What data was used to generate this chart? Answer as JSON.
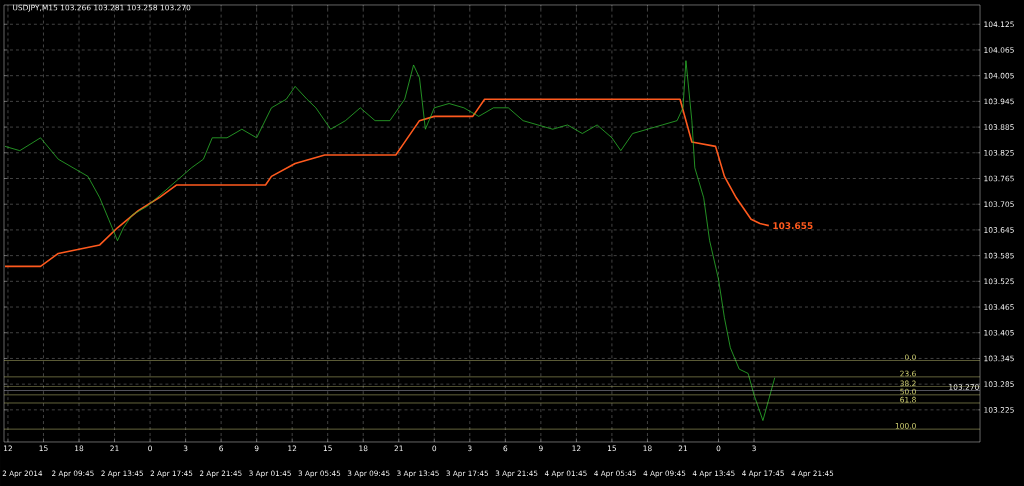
{
  "chart_data": {
    "type": "line",
    "title": "USDJPY,M15  103.266 103.281 103.258 103.270",
    "xlim": [
      "2014-04-02T11:40",
      "2014-04-05T22:05"
    ],
    "ylim": [
      103.15,
      104.17
    ],
    "xticks": [
      {
        "value": "2014-04-02T12:00",
        "label": "12"
      },
      {
        "value": "2014-04-02T15:00",
        "label": "15"
      },
      {
        "value": "2014-04-02T18:00",
        "label": "18"
      },
      {
        "value": "2014-04-02T21:00",
        "label": "21"
      },
      {
        "value": "2014-04-03T00:00",
        "label": "0"
      },
      {
        "value": "2014-04-03T03:00",
        "label": "3"
      },
      {
        "value": "2014-04-03T06:00",
        "label": "6"
      },
      {
        "value": "2014-04-03T09:00",
        "label": "9"
      },
      {
        "value": "2014-04-03T12:00",
        "label": "12"
      },
      {
        "value": "2014-04-03T15:00",
        "label": "15"
      },
      {
        "value": "2014-04-03T18:00",
        "label": "18"
      },
      {
        "value": "2014-04-03T21:00",
        "label": "21"
      },
      {
        "value": "2014-04-04T00:00",
        "label": "0"
      },
      {
        "value": "2014-04-04T03:00",
        "label": "3"
      },
      {
        "value": "2014-04-04T06:00",
        "label": "6"
      },
      {
        "value": "2014-04-04T09:00",
        "label": "9"
      },
      {
        "value": "2014-04-04T12:00",
        "label": "12"
      },
      {
        "value": "2014-04-04T15:00",
        "label": "15"
      },
      {
        "value": "2014-04-04T18:00",
        "label": "18"
      },
      {
        "value": "2014-04-04T21:00",
        "label": "21"
      },
      {
        "value": "2014-04-05T00:00",
        "label": "0"
      },
      {
        "value": "2014-04-05T03:00",
        "label": "3"
      }
    ],
    "yticks": [
      104.125,
      104.065,
      104.005,
      103.945,
      103.885,
      103.825,
      103.765,
      103.705,
      103.645,
      103.585,
      103.525,
      103.465,
      103.405,
      103.345,
      103.285,
      103.225
    ],
    "grid": true,
    "marker": "none",
    "series": [
      {
        "color": "#32cd32",
        "x": [
          "2014-04-02T11:45",
          "2014-04-02T13:00",
          "2014-04-02T14:45",
          "2014-04-02T16:15",
          "2014-04-02T17:30",
          "2014-04-02T18:45",
          "2014-04-02T19:45",
          "2014-04-02T20:30",
          "2014-04-02T21:15",
          "2014-04-02T21:45",
          "2014-04-02T22:30",
          "2014-04-02T23:45",
          "2014-04-03T01:00",
          "2014-04-03T02:15",
          "2014-04-03T03:30",
          "2014-04-03T04:30",
          "2014-04-03T05:15",
          "2014-04-03T06:30",
          "2014-04-03T07:45",
          "2014-04-03T09:00",
          "2014-04-03T10:15",
          "2014-04-03T11:30",
          "2014-04-03T12:15",
          "2014-04-03T13:15",
          "2014-04-03T14:00",
          "2014-04-03T15:15",
          "2014-04-03T16:30",
          "2014-04-03T17:45",
          "2014-04-03T19:00",
          "2014-04-03T20:15",
          "2014-04-03T21:30",
          "2014-04-03T22:15",
          "2014-04-03T22:45",
          "2014-04-03T23:15",
          "2014-04-04T00:00",
          "2014-04-04T01:15",
          "2014-04-04T02:30",
          "2014-04-04T03:45",
          "2014-04-04T05:00",
          "2014-04-04T06:15",
          "2014-04-04T07:30",
          "2014-04-04T08:45",
          "2014-04-04T10:00",
          "2014-04-04T11:15",
          "2014-04-04T12:30",
          "2014-04-04T13:45",
          "2014-04-04T15:00",
          "2014-04-04T15:45",
          "2014-04-04T16:45",
          "2014-04-04T18:00",
          "2014-04-04T19:15",
          "2014-04-04T20:30",
          "2014-04-04T21:00",
          "2014-04-04T21:15",
          "2014-04-04T21:45",
          "2014-04-04T22:00",
          "2014-04-04T22:45",
          "2014-04-04T23:15",
          "2014-04-05T00:00",
          "2014-04-05T00:30",
          "2014-04-05T01:00",
          "2014-04-05T01:45",
          "2014-04-05T02:30",
          "2014-04-05T03:00",
          "2014-04-05T03:45",
          "2014-04-05T04:15",
          "2014-04-05T04:45"
        ],
        "values": [
          103.84,
          103.83,
          103.86,
          103.81,
          103.79,
          103.77,
          103.72,
          103.67,
          103.62,
          103.65,
          103.68,
          103.7,
          103.73,
          103.76,
          103.79,
          103.81,
          103.86,
          103.86,
          103.88,
          103.86,
          103.93,
          103.95,
          103.98,
          103.95,
          103.93,
          103.88,
          103.9,
          103.93,
          103.9,
          103.9,
          103.95,
          104.03,
          104.0,
          103.88,
          103.93,
          103.94,
          103.93,
          103.91,
          103.93,
          103.93,
          103.9,
          103.89,
          103.88,
          103.89,
          103.87,
          103.89,
          103.86,
          103.83,
          103.87,
          103.88,
          103.89,
          103.9,
          103.93,
          104.04,
          103.9,
          103.79,
          103.72,
          103.62,
          103.53,
          103.44,
          103.37,
          103.32,
          103.31,
          103.26,
          103.2,
          103.25,
          103.3
        ]
      },
      {
        "color": "#ff5a1e",
        "x": [
          "2014-04-02T11:45",
          "2014-04-02T14:45",
          "2014-04-02T16:15",
          "2014-04-02T18:00",
          "2014-04-02T19:45",
          "2014-04-02T21:15",
          "2014-04-02T23:00",
          "2014-04-03T00:45",
          "2014-04-03T02:15",
          "2014-04-03T04:45",
          "2014-04-03T09:45",
          "2014-04-03T10:15",
          "2014-04-03T12:15",
          "2014-04-03T14:45",
          "2014-04-03T20:45",
          "2014-04-03T21:30",
          "2014-04-03T22:45",
          "2014-04-04T00:00",
          "2014-04-04T03:15",
          "2014-04-04T04:15",
          "2014-04-04T20:45",
          "2014-04-04T21:45",
          "2014-04-04T23:45",
          "2014-04-05T00:30",
          "2014-04-05T01:30",
          "2014-04-05T02:45",
          "2014-04-05T03:30",
          "2014-04-05T04:15"
        ],
        "values": [
          103.56,
          103.56,
          103.59,
          103.6,
          103.61,
          103.65,
          103.69,
          103.72,
          103.75,
          103.75,
          103.75,
          103.77,
          103.8,
          103.82,
          103.82,
          103.85,
          103.9,
          103.91,
          103.91,
          103.95,
          103.95,
          103.85,
          103.84,
          103.77,
          103.72,
          103.67,
          103.66,
          103.655
        ]
      }
    ],
    "ref_lines": [
      {
        "axis": "y",
        "value": 103.27,
        "label": "103.270",
        "color": "#b4b4c8"
      },
      {
        "axis": "y",
        "value": 103.34,
        "color": "#c8c878"
      },
      {
        "axis": "y",
        "value": 103.302,
        "color": "#c8c878"
      },
      {
        "axis": "y",
        "value": 103.279,
        "color": "#c8c878"
      },
      {
        "axis": "y",
        "value": 103.26,
        "color": "#c8c878"
      },
      {
        "axis": "y",
        "value": 103.241,
        "color": "#c8c878"
      },
      {
        "axis": "y",
        "value": 103.18,
        "color": "#c8c878"
      }
    ],
    "annotations": [
      {
        "text": "103.655",
        "x": "2014-04-05T04:15",
        "y": 103.655
      },
      {
        "text": "0.0",
        "x": "2014-04-05T16:45",
        "y": 103.34
      },
      {
        "text": "23.6",
        "x": "2014-04-05T16:45",
        "y": 103.302
      },
      {
        "text": "38.2",
        "x": "2014-04-05T16:45",
        "y": 103.279
      },
      {
        "text": "50.0",
        "x": "2014-04-05T16:45",
        "y": 103.26
      },
      {
        "text": "61.8",
        "x": "2014-04-05T16:45",
        "y": 103.241
      },
      {
        "text": "100.0",
        "x": "2014-04-05T16:45",
        "y": 103.18
      },
      "2 Apr 2014",
      "2 Apr 09:45",
      "2 Apr 13:45",
      "2 Apr 17:45",
      "2 Apr 21:45",
      "3 Apr 01:45",
      "3 Apr 05:45",
      "3 Apr 09:45",
      "3 Apr 13:45",
      "3 Apr 17:45",
      "3 Apr 21:45",
      "4 Apr 01:45",
      "4 Apr 05:45",
      "4 Apr 09:45",
      "4 Apr 13:45",
      "4 Apr 17:45",
      "4 Apr 21:45"
    ]
  }
}
